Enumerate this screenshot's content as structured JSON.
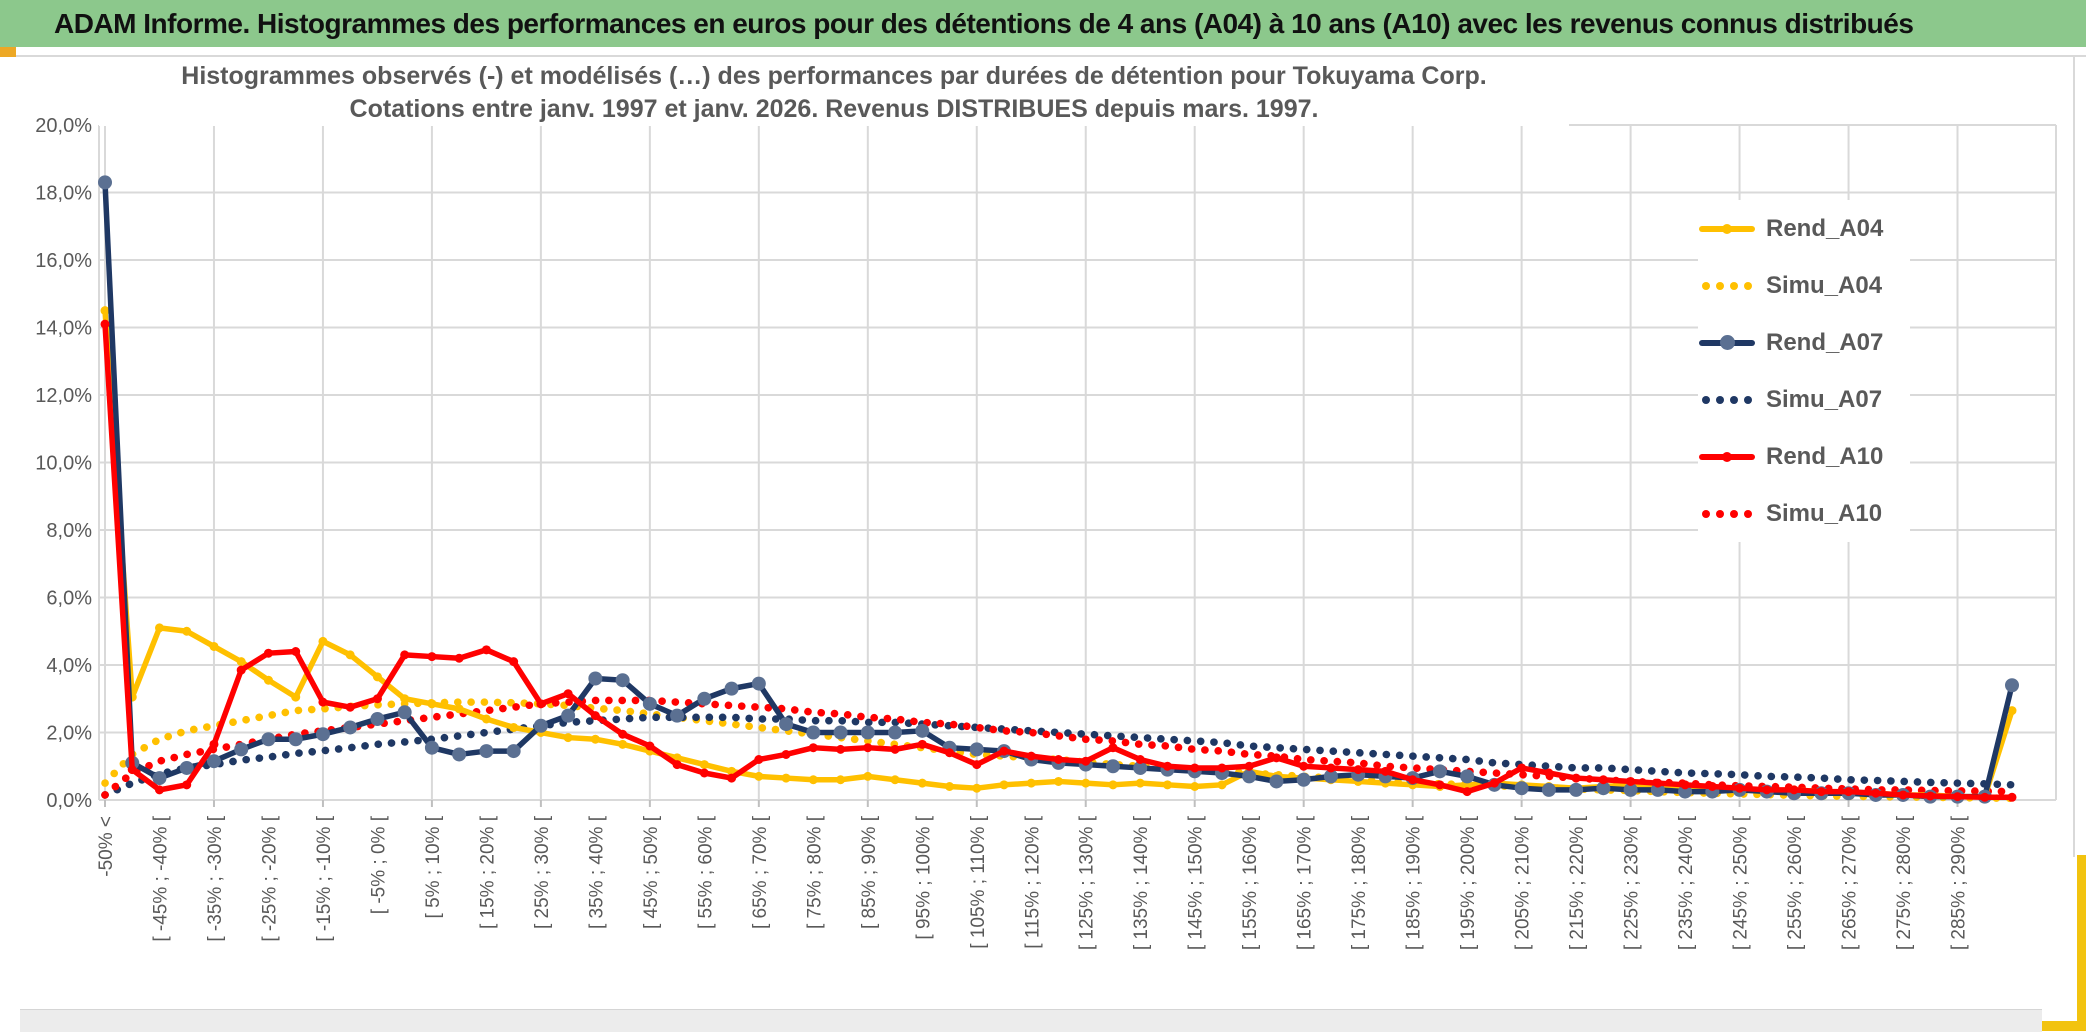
{
  "window": {
    "header_title": "ADAM Informe. Histogrammes des performances en euros pour des détentions de 4 ans (A04) à 10 ans (A10) avec les revenus connus distribués",
    "header_bg": "#8CC88C",
    "edge_yellow_left": "#EDA825",
    "edge_yellow_right": "#F2C30F"
  },
  "colors": {
    "gridline": "#D9D9D9",
    "tick": "#BFBFBF",
    "axis_text": "#595959",
    "title_text": "#595959"
  },
  "chart_data": {
    "type": "line",
    "title_lines": [
      "Histogrammes observés (-) et modélisés (…) des performances par durées de détention pour Tokuyama Corp.",
      "Cotations entre janv. 1997 et janv. 2026. Revenus DISTRIBUES depuis mars. 1997."
    ],
    "xlabel": "",
    "ylabel": "",
    "ylim": [
      0,
      20
    ],
    "grid": true,
    "legend_position": "right",
    "y_tick_labels": [
      "20,0%",
      "18,0%",
      "16,0%",
      "14,0%",
      "12,0%",
      "10,0%",
      "8,0%",
      "6,0%",
      "4,0%",
      "2,0%",
      "0,0%"
    ],
    "n_points": 71,
    "bins_per_label": 2,
    "x_tick_labels": [
      "-50% <",
      "[ -45% ; -40% [",
      "[ -35% ; -30% [",
      "[ -25% ; -20% [",
      "[ -15% ; -10% [",
      "[ -5% ; 0% [",
      "[ 5% ; 10% [",
      "[ 15% ; 20% [",
      "[ 25% ; 30% [",
      "[ 35% ; 40% [",
      "[ 45% ; 50% [",
      "[ 55% ; 60% [",
      "[ 65% ; 70% [",
      "[ 75% ; 80% [",
      "[ 85% ; 90% [",
      "[ 95% ; 100% [",
      "[ 105% ; 110% [",
      "[ 115% ; 120% [",
      "[ 125% ; 130% [",
      "[ 135% ; 140% [",
      "[ 145% ; 150% [",
      "[ 155% ; 160% [",
      "[ 165% ; 170% [",
      "[ 175% ; 180% [",
      "[ 185% ; 190% [",
      "[ 195% ; 200% [",
      "[ 205% ; 210% [",
      "[ 215% ; 220% [",
      "[ 225% ; 230% [",
      "[ 235% ; 240% [",
      "[ 245% ; 250% [",
      "[ 255% ; 260% [",
      "[ 265% ; 270% [",
      "[ 275% ; 280% [",
      "[ 285% ; 290% ["
    ],
    "series": [
      {
        "name": "Rend_A04",
        "style": "solid",
        "color": "#FFC000",
        "marker_color": "#FFC000",
        "marker_r": 4.5,
        "values": [
          14.5,
          3.05,
          5.1,
          5.0,
          4.55,
          4.1,
          3.55,
          3.05,
          4.7,
          4.3,
          3.65,
          3.0,
          2.85,
          2.7,
          2.4,
          2.15,
          2.0,
          1.85,
          1.8,
          1.65,
          1.45,
          1.25,
          1.05,
          0.85,
          0.7,
          0.65,
          0.6,
          0.6,
          0.7,
          0.6,
          0.5,
          0.4,
          0.35,
          0.45,
          0.5,
          0.55,
          0.5,
          0.45,
          0.5,
          0.45,
          0.4,
          0.45,
          0.85,
          0.7,
          0.65,
          0.6,
          0.55,
          0.5,
          0.45,
          0.4,
          0.45,
          0.5,
          0.45,
          0.4,
          0.35,
          0.4,
          0.45,
          0.4,
          0.35,
          0.3,
          0.3,
          0.25,
          0.3,
          0.25,
          0.2,
          0.2,
          0.15,
          0.15,
          0.1,
          0.1,
          2.65
        ]
      },
      {
        "name": "Simu_A04",
        "style": "dotted",
        "color": "#FFC000",
        "values": [
          0.5,
          1.35,
          1.8,
          2.05,
          2.2,
          2.35,
          2.5,
          2.65,
          2.7,
          2.77,
          2.82,
          2.85,
          2.88,
          2.9,
          2.9,
          2.88,
          2.85,
          2.8,
          2.72,
          2.65,
          2.55,
          2.45,
          2.35,
          2.25,
          2.15,
          2.05,
          1.95,
          1.85,
          1.75,
          1.65,
          1.55,
          1.45,
          1.35,
          1.3,
          1.25,
          1.2,
          1.12,
          1.05,
          1.0,
          0.95,
          0.9,
          0.85,
          0.8,
          0.75,
          0.7,
          0.65,
          0.6,
          0.55,
          0.52,
          0.48,
          0.45,
          0.42,
          0.4,
          0.36,
          0.33,
          0.3,
          0.28,
          0.25,
          0.22,
          0.2,
          0.18,
          0.16,
          0.14,
          0.12,
          0.11,
          0.1,
          0.09,
          0.08,
          0.07,
          0.06,
          0.05
        ]
      },
      {
        "name": "Rend_A07",
        "style": "solid",
        "color": "#1F3864",
        "marker_color": "#5B7092",
        "marker_r": 7,
        "values": [
          18.3,
          1.1,
          0.65,
          0.95,
          1.15,
          1.5,
          1.8,
          1.8,
          1.95,
          2.15,
          2.4,
          2.6,
          1.55,
          1.35,
          1.45,
          1.45,
          2.2,
          2.5,
          3.6,
          3.55,
          2.85,
          2.5,
          3.0,
          3.3,
          3.45,
          2.25,
          2.0,
          2.0,
          2.0,
          2.0,
          2.05,
          1.55,
          1.5,
          1.45,
          1.2,
          1.1,
          1.05,
          1.0,
          0.95,
          0.9,
          0.85,
          0.8,
          0.7,
          0.55,
          0.6,
          0.7,
          0.75,
          0.7,
          0.65,
          0.85,
          0.7,
          0.45,
          0.35,
          0.3,
          0.3,
          0.35,
          0.3,
          0.3,
          0.25,
          0.25,
          0.3,
          0.25,
          0.2,
          0.2,
          0.2,
          0.15,
          0.15,
          0.1,
          0.1,
          0.1,
          3.4
        ]
      },
      {
        "name": "Simu_A07",
        "style": "dotted",
        "color": "#1F3864",
        "values": [
          0.15,
          0.5,
          0.77,
          0.95,
          1.05,
          1.18,
          1.27,
          1.38,
          1.46,
          1.55,
          1.65,
          1.72,
          1.8,
          1.9,
          2.0,
          2.1,
          2.2,
          2.3,
          2.35,
          2.4,
          2.45,
          2.45,
          2.45,
          2.45,
          2.4,
          2.4,
          2.35,
          2.35,
          2.3,
          2.3,
          2.25,
          2.2,
          2.15,
          2.1,
          2.05,
          2.0,
          1.95,
          1.9,
          1.85,
          1.8,
          1.75,
          1.7,
          1.6,
          1.55,
          1.5,
          1.45,
          1.4,
          1.35,
          1.3,
          1.25,
          1.2,
          1.1,
          1.05,
          1.0,
          0.95,
          0.95,
          0.9,
          0.85,
          0.8,
          0.78,
          0.75,
          0.7,
          0.68,
          0.65,
          0.6,
          0.58,
          0.55,
          0.52,
          0.5,
          0.48,
          0.45
        ]
      },
      {
        "name": "Rend_A10",
        "style": "solid",
        "color": "#FF0000",
        "marker_color": "#FF0000",
        "marker_r": 4.5,
        "values": [
          14.1,
          0.9,
          0.3,
          0.45,
          1.65,
          3.85,
          4.35,
          4.4,
          2.9,
          2.75,
          3.0,
          4.3,
          4.25,
          4.2,
          4.45,
          4.1,
          2.85,
          3.15,
          2.5,
          1.95,
          1.6,
          1.05,
          0.8,
          0.65,
          1.2,
          1.35,
          1.55,
          1.5,
          1.55,
          1.5,
          1.65,
          1.4,
          1.05,
          1.45,
          1.3,
          1.2,
          1.15,
          1.55,
          1.2,
          1.0,
          0.95,
          0.95,
          1.0,
          1.25,
          1.0,
          0.95,
          0.9,
          0.85,
          0.6,
          0.45,
          0.25,
          0.5,
          0.95,
          0.8,
          0.65,
          0.6,
          0.55,
          0.5,
          0.45,
          0.4,
          0.35,
          0.3,
          0.3,
          0.25,
          0.25,
          0.2,
          0.15,
          0.12,
          0.1,
          0.08,
          0.08
        ]
      },
      {
        "name": "Simu_A10",
        "style": "dotted",
        "color": "#FF0000",
        "values": [
          0.15,
          0.8,
          1.15,
          1.35,
          1.5,
          1.65,
          1.8,
          1.95,
          2.05,
          2.15,
          2.25,
          2.35,
          2.45,
          2.55,
          2.65,
          2.75,
          2.85,
          2.9,
          2.95,
          2.95,
          2.95,
          2.9,
          2.85,
          2.8,
          2.75,
          2.7,
          2.6,
          2.55,
          2.45,
          2.4,
          2.3,
          2.25,
          2.15,
          2.05,
          2.0,
          1.9,
          1.8,
          1.75,
          1.65,
          1.6,
          1.5,
          1.45,
          1.35,
          1.3,
          1.2,
          1.15,
          1.1,
          1.0,
          0.95,
          0.9,
          0.85,
          0.8,
          0.75,
          0.7,
          0.65,
          0.6,
          0.55,
          0.52,
          0.5,
          0.45,
          0.42,
          0.4,
          0.38,
          0.35,
          0.33,
          0.3,
          0.3,
          0.28,
          0.27,
          0.26,
          0.25
        ]
      }
    ]
  }
}
